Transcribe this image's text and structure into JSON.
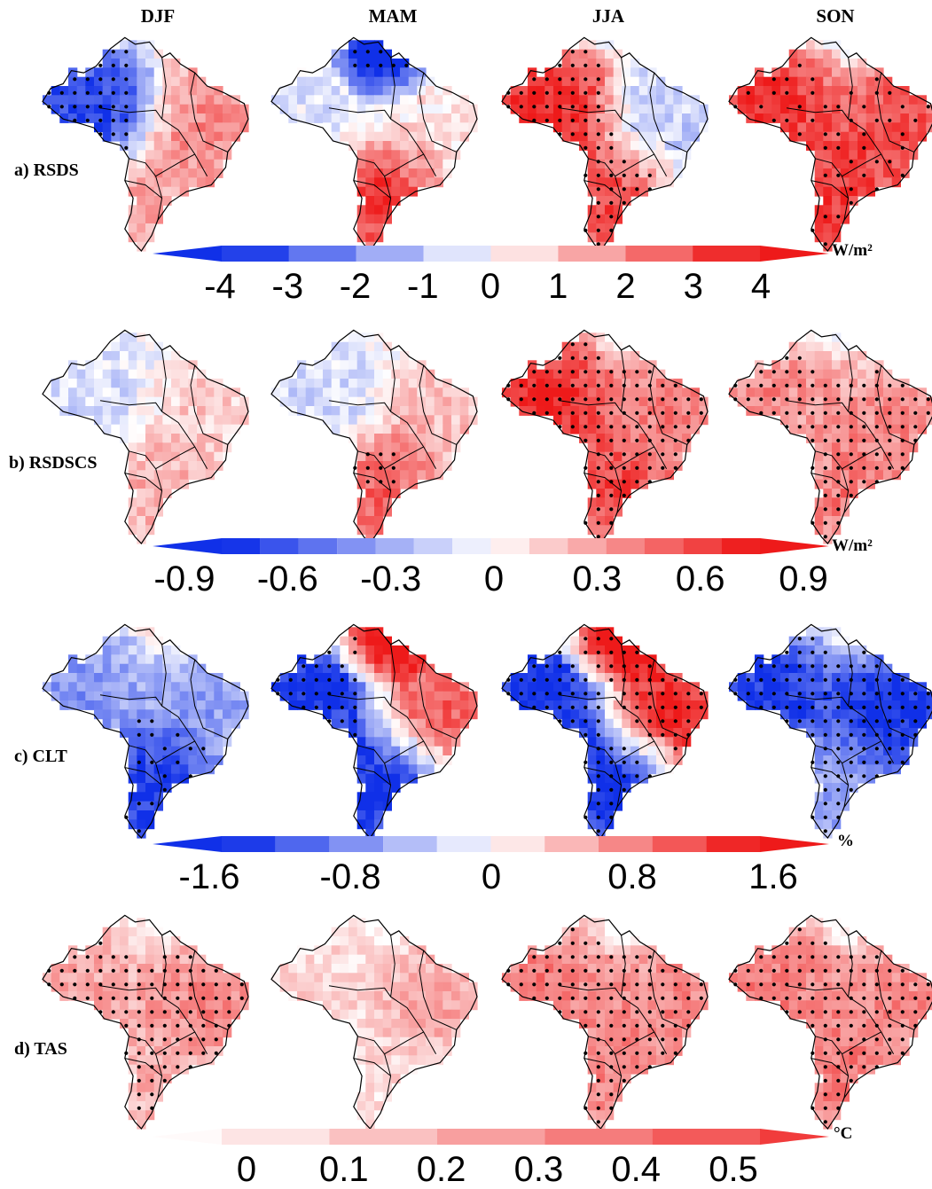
{
  "seasons": [
    "DJF",
    "MAM",
    "JJA",
    "SON"
  ],
  "colors": {
    "blue": "#1030e8",
    "red": "#ee1a1a",
    "white": "#ffffff",
    "border": "#000000",
    "stipple": "#000000"
  },
  "rows": [
    {
      "label": "a) RSDS",
      "unit": "W/m²",
      "colorbar": {
        "type": "diverging",
        "bounds": [
          -4,
          -3,
          -2,
          -1,
          0,
          1,
          2,
          3,
          4
        ],
        "tick_labels": [
          "-4",
          "-3",
          "-2",
          "-1",
          "0",
          "1",
          "2",
          "3",
          "4"
        ],
        "extend": "both"
      },
      "panels": [
        {
          "season": "DJF",
          "west": -0.8,
          "east": 0.45,
          "south": 0.35,
          "stipple": "west-blue"
        },
        {
          "season": "MAM",
          "west": -0.1,
          "east": 0.1,
          "south": 0.75,
          "north": -0.9,
          "stipple": "north-blue"
        },
        {
          "season": "JJA",
          "west": 0.85,
          "east": -0.2,
          "south": 0.7,
          "stipple": "broad"
        },
        {
          "season": "SON",
          "west": 0.8,
          "east": 0.7,
          "south": 0.75,
          "stipple": "sparse"
        }
      ]
    },
    {
      "label": "b) RSDSCS",
      "unit": "W/m²",
      "colorbar": {
        "type": "diverging",
        "bounds": [
          -1.05,
          -0.9,
          -0.75,
          -0.6,
          -0.45,
          -0.3,
          -0.15,
          0,
          0.15,
          0.3,
          0.45,
          0.6,
          0.75,
          0.9,
          1.05
        ],
        "tick_labels": [
          "-0.9",
          "-0.6",
          "-0.3",
          "0",
          "0.3",
          "0.6",
          "0.9"
        ],
        "extend": "both"
      },
      "panels": [
        {
          "season": "DJF",
          "west": -0.15,
          "east": 0.2,
          "south": 0.3,
          "stipple": "none"
        },
        {
          "season": "MAM",
          "west": -0.15,
          "east": 0.25,
          "south": 0.6,
          "stipple": "south"
        },
        {
          "season": "JJA",
          "west": 0.85,
          "east": 0.5,
          "south": 0.7,
          "stipple": "broad"
        },
        {
          "season": "SON",
          "west": 0.45,
          "east": 0.45,
          "south": 0.5,
          "stipple": "broad"
        }
      ]
    },
    {
      "label": "c) CLT",
      "unit": "%",
      "colorbar": {
        "type": "diverging",
        "bounds": [
          -2.0,
          -1.6,
          -1.2,
          -0.8,
          -0.4,
          0,
          0.4,
          0.8,
          1.2,
          1.6,
          2.0
        ],
        "tick_labels": [
          "-1.6",
          "-0.8",
          "0",
          "0.8",
          "1.6"
        ],
        "extend": "both"
      },
      "panels": [
        {
          "season": "DJF",
          "west": -0.45,
          "east": -0.4,
          "south": -0.85,
          "stipple": "sparse"
        },
        {
          "season": "MAM",
          "west": -0.9,
          "east": 0.6,
          "south": -0.9,
          "north": 0.9,
          "stipple": "west-blue"
        },
        {
          "season": "JJA",
          "west": -0.9,
          "east": 0.85,
          "south": -0.95,
          "north": 0.95,
          "stipple": "broad"
        },
        {
          "season": "SON",
          "west": -0.85,
          "east": -0.9,
          "south": -0.4,
          "stipple": "broad"
        }
      ]
    },
    {
      "label": "d) TAS",
      "unit": "°C",
      "colorbar": {
        "type": "sequential",
        "bounds": [
          0,
          0.1,
          0.2,
          0.3,
          0.4,
          0.5
        ],
        "tick_labels": [
          "0",
          "0.1",
          "0.2",
          "0.3",
          "0.4",
          "0.5"
        ],
        "extend": "both"
      },
      "panels": [
        {
          "season": "DJF",
          "west": 0.4,
          "east": 0.55,
          "south": 0.35,
          "stipple": "broad"
        },
        {
          "season": "MAM",
          "west": 0.2,
          "east": 0.4,
          "south": 0.15,
          "stipple": "sparse"
        },
        {
          "season": "JJA",
          "west": 0.6,
          "east": 0.55,
          "south": 0.55,
          "stipple": "broad"
        },
        {
          "season": "SON",
          "west": 0.6,
          "east": 0.55,
          "south": 0.6,
          "stipple": "broad"
        }
      ]
    }
  ]
}
